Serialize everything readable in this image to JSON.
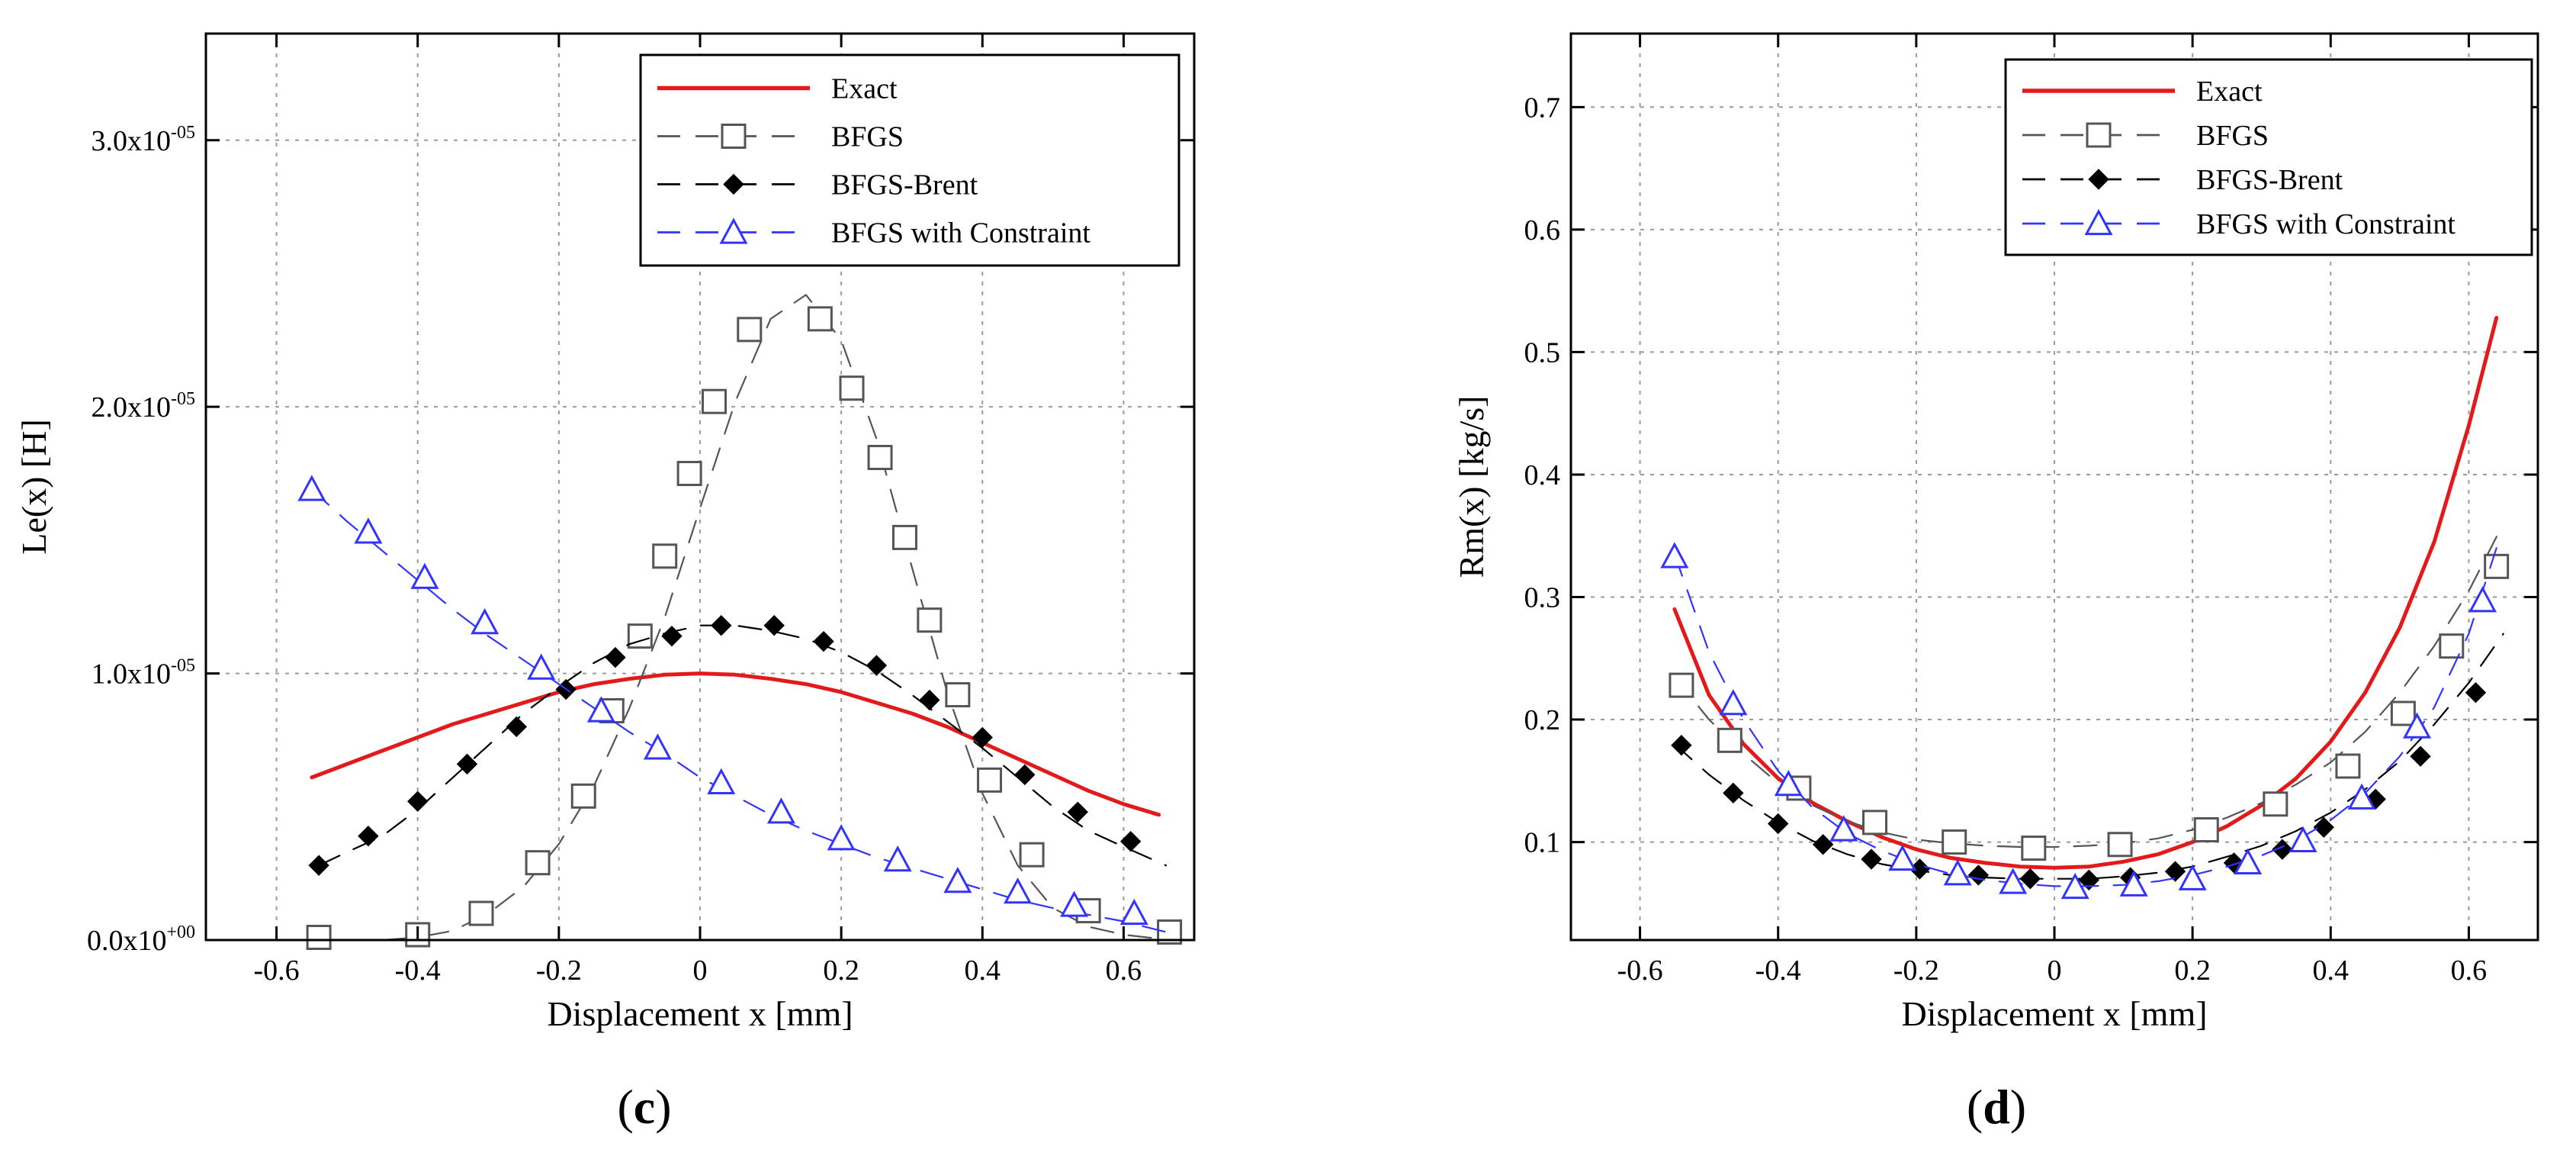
{
  "figure": {
    "panels": [
      "c",
      "d"
    ]
  },
  "colors": {
    "exact": "#e31a1c",
    "bfgs": "#555555",
    "brent": "#000000",
    "constraint": "#3333ff",
    "grid": "#9a9a9a",
    "axis": "#000000"
  },
  "chart_data": [
    {
      "type": "line",
      "panel_label": "(c)",
      "title": "",
      "xlabel": "Displacement x [mm]",
      "ylabel": "Le(x) [H]",
      "xlim": [
        -0.7,
        0.7
      ],
      "ylim": [
        0,
        3.4e-05
      ],
      "grid": true,
      "legend_position": "top-right",
      "xticks": [
        {
          "value": -0.6,
          "label": "-0.6"
        },
        {
          "value": -0.4,
          "label": "-0.4"
        },
        {
          "value": -0.2,
          "label": "-0.2"
        },
        {
          "value": 0,
          "label": "0"
        },
        {
          "value": 0.2,
          "label": "0.2"
        },
        {
          "value": 0.4,
          "label": "0.4"
        },
        {
          "value": 0.6,
          "label": "0.6"
        }
      ],
      "yticks": [
        {
          "value": 0,
          "base": "0.0x10",
          "exp": "+00"
        },
        {
          "value": 1e-05,
          "base": "1.0x10",
          "exp": "-05"
        },
        {
          "value": 2e-05,
          "base": "2.0x10",
          "exp": "-05"
        },
        {
          "value": 3e-05,
          "base": "3.0x10",
          "exp": "-05"
        }
      ],
      "series": [
        {
          "name": "Exact",
          "style": "exact",
          "x": [
            -0.55,
            -0.5,
            -0.45,
            -0.4,
            -0.35,
            -0.3,
            -0.25,
            -0.2,
            -0.15,
            -0.1,
            -0.05,
            0,
            0.05,
            0.1,
            0.15,
            0.2,
            0.25,
            0.3,
            0.35,
            0.4,
            0.45,
            0.5,
            0.55,
            0.6,
            0.65
          ],
          "y": [
            6.1e-06,
            6.6e-06,
            7.1e-06,
            7.6e-06,
            8.1e-06,
            8.5e-06,
            8.9e-06,
            9.3e-06,
            9.6e-06,
            9.8e-06,
            9.95e-06,
            1e-05,
            9.95e-06,
            9.8e-06,
            9.6e-06,
            9.3e-06,
            8.9e-06,
            8.5e-06,
            8e-06,
            7.4e-06,
            6.8e-06,
            6.2e-06,
            5.6e-06,
            5.1e-06,
            4.7e-06
          ]
        },
        {
          "name": "BFGS",
          "style": "bfgs",
          "x": [
            -0.55,
            -0.5,
            -0.45,
            -0.4,
            -0.35,
            -0.3,
            -0.25,
            -0.2,
            -0.15,
            -0.1,
            -0.05,
            0,
            0.05,
            0.1,
            0.15,
            0.2,
            0.25,
            0.3,
            0.35,
            0.4,
            0.45,
            0.5,
            0.55,
            0.6,
            0.65
          ],
          "y": [
            0,
            0,
            0,
            1e-07,
            3.5e-07,
            1e-06,
            2e-06,
            3.6e-06,
            5.8e-06,
            8.7e-06,
            1.21e-05,
            1.62e-05,
            2.02e-05,
            2.33e-05,
            2.42e-05,
            2.25e-05,
            1.88e-05,
            1.4e-05,
            9.3e-06,
            5.5e-06,
            2.8e-06,
            1.2e-06,
            5e-07,
            2e-07,
            5e-08
          ],
          "markers": {
            "x": [
              -0.54,
              -0.4,
              -0.31,
              -0.23,
              -0.165,
              -0.125,
              -0.085,
              -0.05,
              -0.015,
              0.02,
              0.07,
              0.17,
              0.215,
              0.255,
              0.29,
              0.325,
              0.365,
              0.41,
              0.47,
              0.55,
              0.665
            ],
            "y": [
              1e-07,
              2e-07,
              1e-06,
              2.9e-06,
              5.4e-06,
              8.6e-06,
              1.14e-05,
              1.44e-05,
              1.75e-05,
              2.02e-05,
              2.29e-05,
              2.33e-05,
              2.07e-05,
              1.81e-05,
              1.51e-05,
              1.2e-05,
              9.2e-06,
              6e-06,
              3.2e-06,
              1.1e-06,
              3e-07
            ]
          }
        },
        {
          "name": "BFGS-Brent",
          "style": "brent",
          "x": [
            -0.54,
            -0.5,
            -0.45,
            -0.4,
            -0.35,
            -0.3,
            -0.25,
            -0.2,
            -0.15,
            -0.1,
            -0.05,
            0,
            0.05,
            0.1,
            0.15,
            0.2,
            0.25,
            0.3,
            0.35,
            0.4,
            0.45,
            0.5,
            0.55,
            0.6,
            0.66
          ],
          "y": [
            2.8e-06,
            3.3e-06,
            3.9e-06,
            4.9e-06,
            6.1e-06,
            7.3e-06,
            8.5e-06,
            9.5e-06,
            1.04e-05,
            1.11e-05,
            1.15e-05,
            1.18e-05,
            1.18e-05,
            1.16e-05,
            1.13e-05,
            1.08e-05,
            1.01e-05,
            9.2e-06,
            8.2e-06,
            7.2e-06,
            6.1e-06,
            5e-06,
            4.1e-06,
            3.5e-06,
            2.8e-06
          ],
          "markers": {
            "x": [
              -0.54,
              -0.47,
              -0.4,
              -0.33,
              -0.26,
              -0.19,
              -0.12,
              -0.04,
              0.03,
              0.105,
              0.175,
              0.25,
              0.325,
              0.4,
              0.46,
              0.535,
              0.61
            ],
            "y": [
              2.8e-06,
              3.9e-06,
              5.2e-06,
              6.6e-06,
              8e-06,
              9.4e-06,
              1.06e-05,
              1.14e-05,
              1.18e-05,
              1.18e-05,
              1.12e-05,
              1.03e-05,
              9e-06,
              7.6e-06,
              6.2e-06,
              4.8e-06,
              3.7e-06
            ]
          }
        },
        {
          "name": "BFGS with Constraint",
          "style": "constraint",
          "x": [
            -0.55,
            -0.5,
            -0.45,
            -0.4,
            -0.35,
            -0.3,
            -0.25,
            -0.2,
            -0.15,
            -0.1,
            -0.05,
            0,
            0.05,
            0.1,
            0.15,
            0.2,
            0.25,
            0.3,
            0.35,
            0.4,
            0.45,
            0.5,
            0.55,
            0.6,
            0.66
          ],
          "y": [
            1.69e-05,
            1.57e-05,
            1.46e-05,
            1.35e-05,
            1.24e-05,
            1.14e-05,
            1.05e-05,
            9.6e-06,
            8.7e-06,
            7.8e-06,
            7e-06,
            6.1e-06,
            5.4e-06,
            4.7e-06,
            4.1e-06,
            3.6e-06,
            3.1e-06,
            2.7e-06,
            2.3e-06,
            1.9e-06,
            1.5e-06,
            1.2e-06,
            9.5e-07,
            7e-07,
            3e-07
          ],
          "markers": {
            "x": [
              -0.55,
              -0.47,
              -0.39,
              -0.305,
              -0.225,
              -0.14,
              -0.06,
              0.03,
              0.115,
              0.2,
              0.28,
              0.365,
              0.45,
              0.53,
              0.615
            ],
            "y": [
              1.69e-05,
              1.53e-05,
              1.36e-05,
              1.19e-05,
              1.02e-05,
              8.6e-06,
              7.2e-06,
              5.9e-06,
              4.8e-06,
              3.8e-06,
              3e-06,
              2.2e-06,
              1.8e-06,
              1.3e-06,
              1e-06
            ]
          }
        }
      ]
    },
    {
      "type": "line",
      "panel_label": "(d)",
      "title": "",
      "xlabel": "Displacement x [mm]",
      "ylabel": "Rm(x) [kg/s]",
      "xlim": [
        -0.7,
        0.7
      ],
      "ylim": [
        0.02,
        0.76
      ],
      "grid": true,
      "legend_position": "top-right",
      "xticks": [
        {
          "value": -0.6,
          "label": "-0.6"
        },
        {
          "value": -0.4,
          "label": "-0.4"
        },
        {
          "value": -0.2,
          "label": "-0.2"
        },
        {
          "value": 0,
          "label": "0"
        },
        {
          "value": 0.2,
          "label": "0.2"
        },
        {
          "value": 0.4,
          "label": "0.4"
        },
        {
          "value": 0.6,
          "label": "0.6"
        }
      ],
      "yticks": [
        {
          "value": 0.1,
          "label": "0.1"
        },
        {
          "value": 0.2,
          "label": "0.2"
        },
        {
          "value": 0.3,
          "label": "0.3"
        },
        {
          "value": 0.4,
          "label": "0.4"
        },
        {
          "value": 0.5,
          "label": "0.5"
        },
        {
          "value": 0.6,
          "label": "0.6"
        },
        {
          "value": 0.7,
          "label": "0.7"
        }
      ],
      "series": [
        {
          "name": "Exact",
          "style": "exact",
          "x": [
            -0.55,
            -0.5,
            -0.45,
            -0.4,
            -0.35,
            -0.3,
            -0.25,
            -0.2,
            -0.15,
            -0.1,
            -0.05,
            0,
            0.05,
            0.1,
            0.15,
            0.2,
            0.25,
            0.3,
            0.35,
            0.4,
            0.45,
            0.5,
            0.55,
            0.6,
            0.64
          ],
          "y": [
            0.29,
            0.22,
            0.18,
            0.152,
            0.132,
            0.117,
            0.104,
            0.094,
            0.087,
            0.083,
            0.08,
            0.079,
            0.08,
            0.084,
            0.09,
            0.1,
            0.113,
            0.13,
            0.152,
            0.182,
            0.222,
            0.275,
            0.345,
            0.44,
            0.528
          ]
        },
        {
          "name": "BFGS",
          "style": "bfgs",
          "x": [
            -0.55,
            -0.5,
            -0.45,
            -0.4,
            -0.35,
            -0.3,
            -0.25,
            -0.2,
            -0.15,
            -0.1,
            -0.05,
            0,
            0.05,
            0.1,
            0.15,
            0.2,
            0.25,
            0.3,
            0.35,
            0.4,
            0.45,
            0.5,
            0.55,
            0.6,
            0.65
          ],
          "y": [
            0.235,
            0.2,
            0.172,
            0.148,
            0.13,
            0.117,
            0.108,
            0.102,
            0.099,
            0.097,
            0.096,
            0.096,
            0.097,
            0.099,
            0.103,
            0.11,
            0.12,
            0.132,
            0.147,
            0.165,
            0.19,
            0.222,
            0.26,
            0.305,
            0.36
          ],
          "markers": {
            "x": [
              -0.54,
              -0.47,
              -0.37,
              -0.26,
              -0.145,
              -0.03,
              0.095,
              0.22,
              0.32,
              0.425,
              0.505,
              0.575,
              0.64
            ],
            "y": [
              0.228,
              0.183,
              0.144,
              0.116,
              0.1,
              0.095,
              0.098,
              0.11,
              0.131,
              0.162,
              0.205,
              0.26,
              0.325
            ]
          }
        },
        {
          "name": "BFGS-Brent",
          "style": "brent",
          "x": [
            -0.55,
            -0.5,
            -0.45,
            -0.4,
            -0.35,
            -0.3,
            -0.25,
            -0.2,
            -0.15,
            -0.1,
            -0.05,
            0,
            0.05,
            0.1,
            0.15,
            0.2,
            0.25,
            0.3,
            0.35,
            0.4,
            0.45,
            0.5,
            0.55,
            0.6,
            0.65
          ],
          "y": [
            0.18,
            0.155,
            0.134,
            0.116,
            0.101,
            0.09,
            0.082,
            0.077,
            0.073,
            0.071,
            0.07,
            0.07,
            0.07,
            0.072,
            0.075,
            0.08,
            0.088,
            0.097,
            0.109,
            0.124,
            0.143,
            0.166,
            0.196,
            0.23,
            0.27
          ],
          "markers": {
            "x": [
              -0.54,
              -0.465,
              -0.4,
              -0.335,
              -0.265,
              -0.195,
              -0.11,
              -0.035,
              0.05,
              0.11,
              0.175,
              0.26,
              0.33,
              0.39,
              0.465,
              0.53,
              0.61
            ],
            "y": [
              0.179,
              0.14,
              0.115,
              0.098,
              0.086,
              0.078,
              0.073,
              0.07,
              0.069,
              0.071,
              0.076,
              0.083,
              0.094,
              0.112,
              0.135,
              0.17,
              0.222
            ]
          }
        },
        {
          "name": "BFGS with Constraint",
          "style": "constraint",
          "x": [
            -0.55,
            -0.5,
            -0.45,
            -0.4,
            -0.35,
            -0.3,
            -0.25,
            -0.2,
            -0.15,
            -0.1,
            -0.05,
            0,
            0.05,
            0.1,
            0.15,
            0.2,
            0.25,
            0.3,
            0.35,
            0.4,
            0.45,
            0.5,
            0.55,
            0.6,
            0.64
          ],
          "y": [
            0.335,
            0.255,
            0.2,
            0.158,
            0.128,
            0.107,
            0.093,
            0.082,
            0.074,
            0.069,
            0.066,
            0.064,
            0.064,
            0.065,
            0.068,
            0.073,
            0.08,
            0.089,
            0.101,
            0.118,
            0.14,
            0.17,
            0.21,
            0.27,
            0.34
          ],
          "markers": {
            "x": [
              -0.55,
              -0.465,
              -0.385,
              -0.305,
              -0.22,
              -0.14,
              -0.06,
              0.03,
              0.115,
              0.2,
              0.28,
              0.36,
              0.445,
              0.525,
              0.62
            ],
            "y": [
              0.333,
              0.213,
              0.147,
              0.11,
              0.086,
              0.074,
              0.067,
              0.063,
              0.065,
              0.07,
              0.083,
              0.101,
              0.136,
              0.194,
              0.297
            ]
          }
        }
      ]
    }
  ]
}
